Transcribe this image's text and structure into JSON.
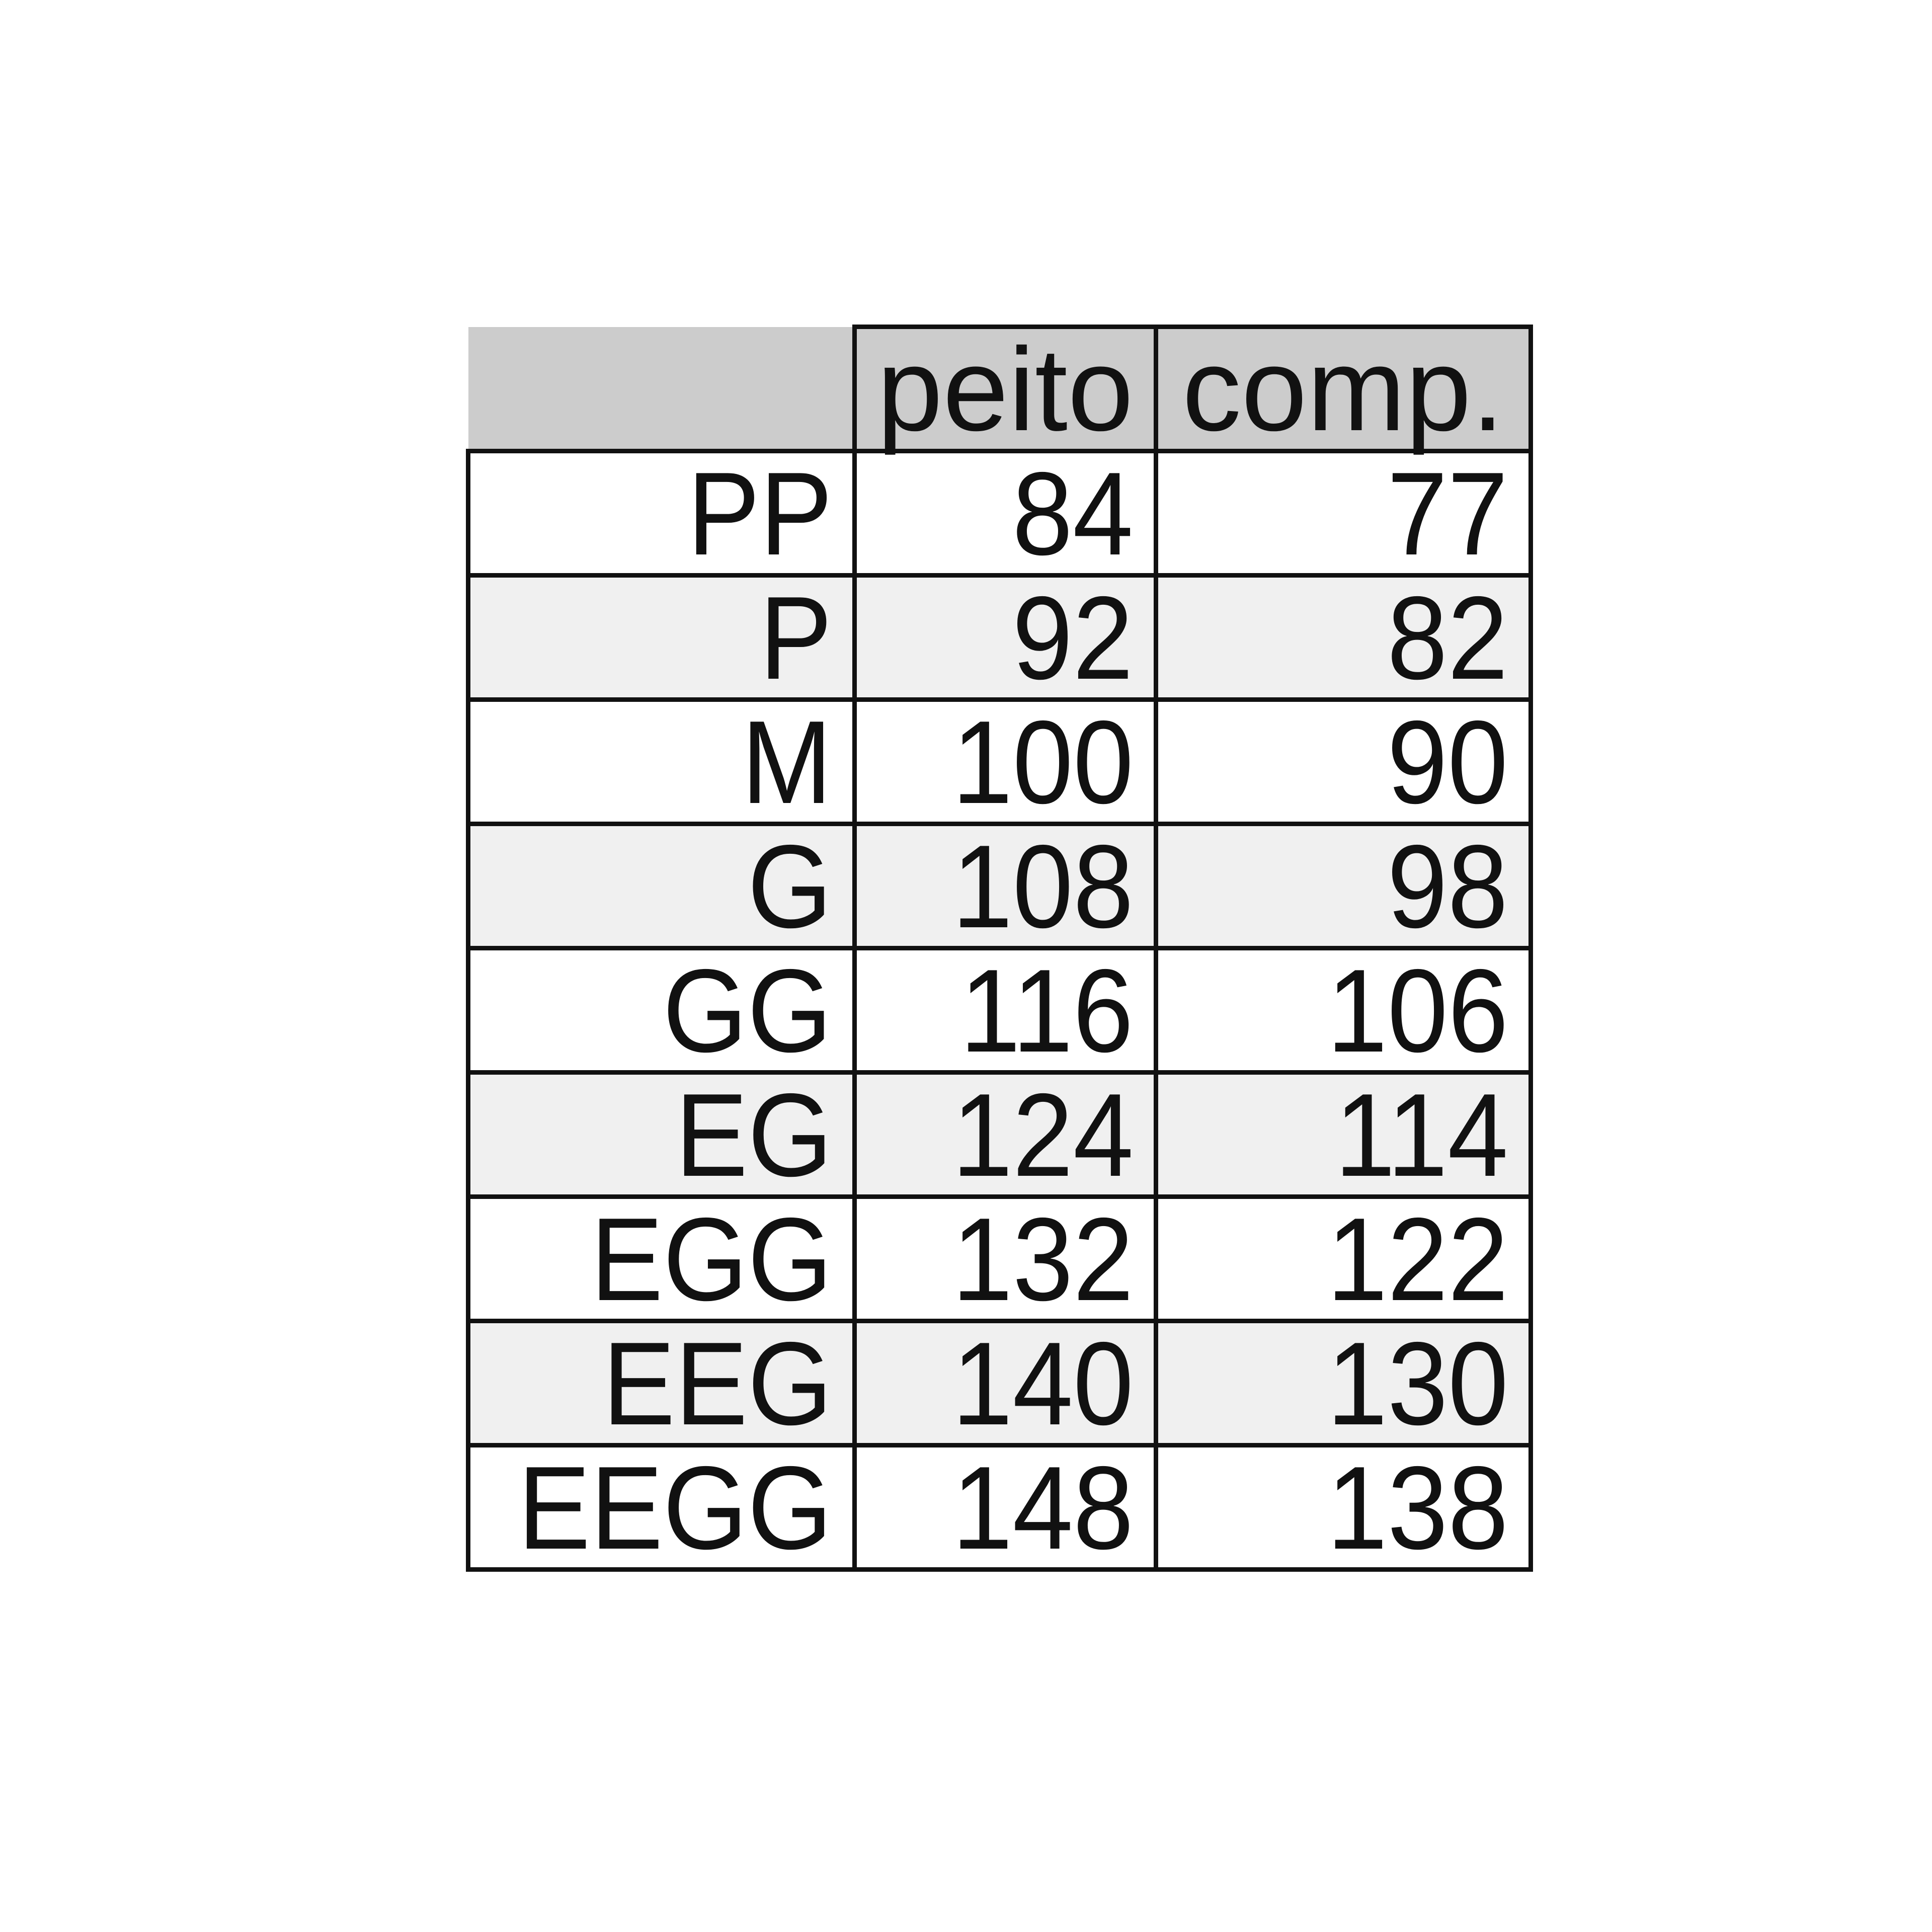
{
  "table": {
    "headers": [
      "",
      "peito",
      "comp."
    ],
    "rows": [
      [
        "PP",
        "84",
        "77"
      ],
      [
        "P",
        "92",
        "82"
      ],
      [
        "M",
        "100",
        "90"
      ],
      [
        "G",
        "108",
        "98"
      ],
      [
        "GG",
        "116",
        "106"
      ],
      [
        "EG",
        "124",
        "114"
      ],
      [
        "EGG",
        "132",
        "122"
      ],
      [
        "EEG",
        "140",
        "130"
      ],
      [
        "EEGG",
        "148",
        "138"
      ]
    ]
  }
}
